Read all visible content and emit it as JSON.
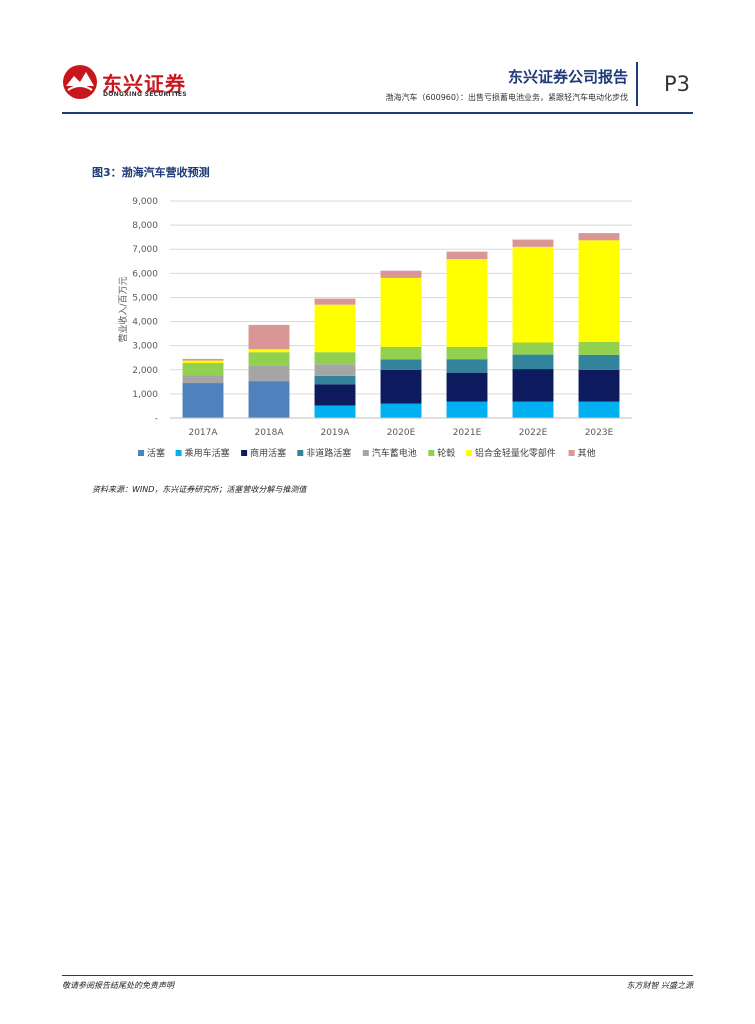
{
  "header": {
    "logo_cn": "东兴证券",
    "logo_en": "DONGXING SECURITIES",
    "report_title": "东兴证券公司报告",
    "report_subtitle": "渤海汽车（600960）：出售亏损蓄电池业务，紧跟轻汽车电动化步伐",
    "page_num": "P3",
    "brand_color": "#c8161d",
    "accent_color": "#1e3a78"
  },
  "figure": {
    "title": "图3：渤海汽车营收预测",
    "source": "资料来源：WIND，东兴证券研究所；活塞营收分解与推测值"
  },
  "chart_data": {
    "type": "bar",
    "stacked": true,
    "categories": [
      "2017A",
      "2018A",
      "2019A",
      "2020E",
      "2021E",
      "2022E",
      "2023E"
    ],
    "ylabel": "营业收入/百万元",
    "ylim": [
      0,
      9000
    ],
    "yticks": [
      "-",
      "1,000",
      "2,000",
      "3,000",
      "4,000",
      "5,000",
      "6,000",
      "7,000",
      "8,000",
      "9,000"
    ],
    "grid": true,
    "legend_position": "bottom",
    "series": [
      {
        "name": "活塞",
        "color": "#4f81bd",
        "values": [
          1450,
          1530,
          0,
          0,
          0,
          0,
          0
        ]
      },
      {
        "name": "乘用车活塞",
        "color": "#00b0f0",
        "values": [
          0,
          0,
          520,
          600,
          680,
          680,
          680
        ]
      },
      {
        "name": "商用活塞",
        "color": "#0d1b5e",
        "values": [
          0,
          0,
          880,
          1400,
          1200,
          1350,
          1320
        ]
      },
      {
        "name": "非道路活塞",
        "color": "#31849b",
        "values": [
          0,
          0,
          350,
          430,
          560,
          600,
          620
        ]
      },
      {
        "name": "汽车蓄电池",
        "color": "#a5a5a5",
        "values": [
          330,
          630,
          480,
          0,
          0,
          0,
          0
        ]
      },
      {
        "name": "轮毂",
        "color": "#92d050",
        "values": [
          500,
          570,
          500,
          520,
          510,
          500,
          540
        ]
      },
      {
        "name": "铝合金轻量化零部件",
        "color": "#ffff00",
        "values": [
          100,
          120,
          1970,
          2860,
          3640,
          3970,
          4210
        ]
      },
      {
        "name": "其他",
        "color": "#da9694",
        "values": [
          70,
          1010,
          250,
          300,
          310,
          300,
          300
        ]
      }
    ]
  },
  "footer": {
    "left": "敬请参阅报告结尾处的免责声明",
    "right": "东方财智 兴盛之源"
  }
}
